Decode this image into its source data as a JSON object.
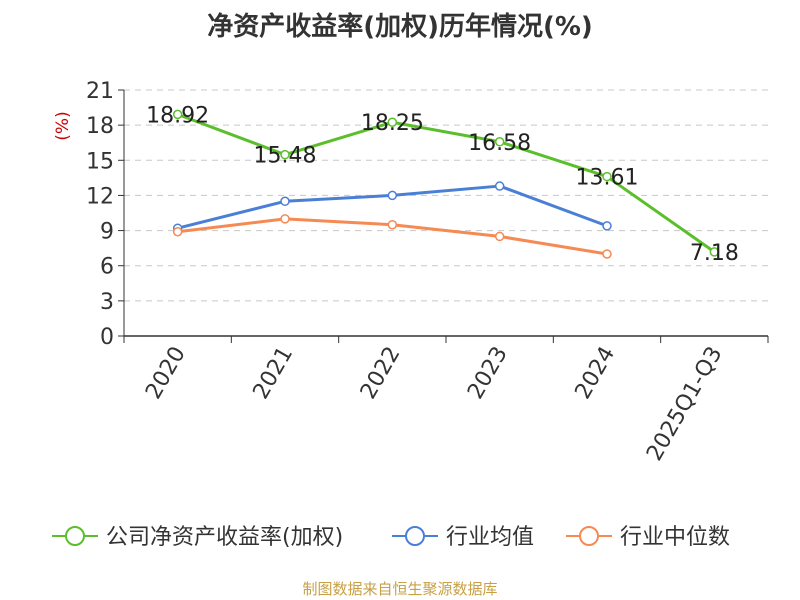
{
  "title": "净资产收益率(加权)历年情况(%)",
  "source": "制图数据来自恒生聚源数据库",
  "colors": {
    "company": "#5bbf2c",
    "industry_avg": "#4a7fd6",
    "industry_median": "#f58a53",
    "grid": "#c8c8c8",
    "axis": "#333333",
    "unit": "#cc0000"
  },
  "chart_data": {
    "type": "line",
    "title": "净资产收益率(加权)历年情况(%)",
    "ylabel": "(%)",
    "ylim": [
      0,
      21
    ],
    "yticks": [
      0,
      3,
      6,
      9,
      12,
      15,
      18,
      21
    ],
    "grid": true,
    "legend_position": "bottom",
    "categories": [
      "2020",
      "2021",
      "2022",
      "2023",
      "2024",
      "2025Q1-Q3"
    ],
    "series": [
      {
        "name": "公司净资产收益率(加权)",
        "color_key": "company",
        "values": [
          18.92,
          15.48,
          18.25,
          16.58,
          13.61,
          7.18
        ],
        "labels": true
      },
      {
        "name": "行业均值",
        "color_key": "industry_avg",
        "values": [
          9.2,
          11.5,
          12.0,
          12.8,
          9.4,
          null
        ],
        "labels": false
      },
      {
        "name": "行业中位数",
        "color_key": "industry_median",
        "values": [
          8.9,
          10.0,
          9.5,
          8.5,
          7.0,
          null
        ],
        "labels": false
      }
    ]
  }
}
